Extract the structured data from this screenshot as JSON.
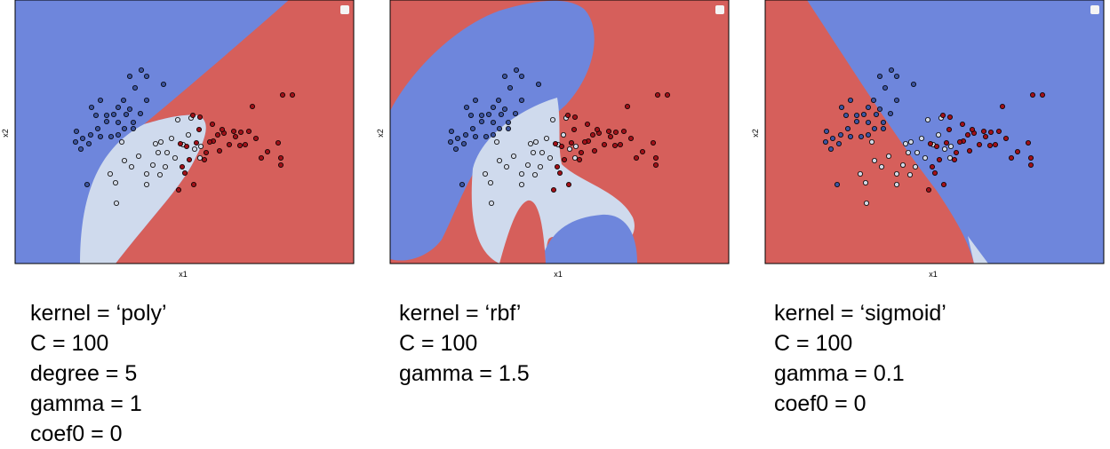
{
  "colors": {
    "class0": "#6e86dc",
    "class1": "#cfdaed",
    "class2": "#d65f5b",
    "class0_point": "#3c54a0",
    "class1_point": "#d2d9e6",
    "class2_point": "#a01018",
    "edge": "#000000"
  },
  "chart_data": [
    {
      "type": "scatter",
      "title": "",
      "xlabel": "x1",
      "ylabel": "x2",
      "legend": "top-right",
      "grid": false,
      "parameters": [
        "kernel = ‘poly’",
        "C = 100",
        "degree = 5",
        "gamma = 1",
        "coef0 = 0"
      ]
    },
    {
      "type": "scatter",
      "title": "",
      "xlabel": "x1",
      "ylabel": "x2",
      "legend": "top-right",
      "grid": false,
      "parameters": [
        "kernel = ‘rbf’",
        "C = 100",
        "gamma = 1.5"
      ]
    },
    {
      "type": "scatter",
      "title": "",
      "xlabel": "x1",
      "ylabel": "x2",
      "legend": "top-right",
      "grid": false,
      "parameters": [
        "kernel = ‘sigmoid’",
        "C = 100",
        "gamma = 0.1",
        "coef0 = 0"
      ]
    }
  ]
}
